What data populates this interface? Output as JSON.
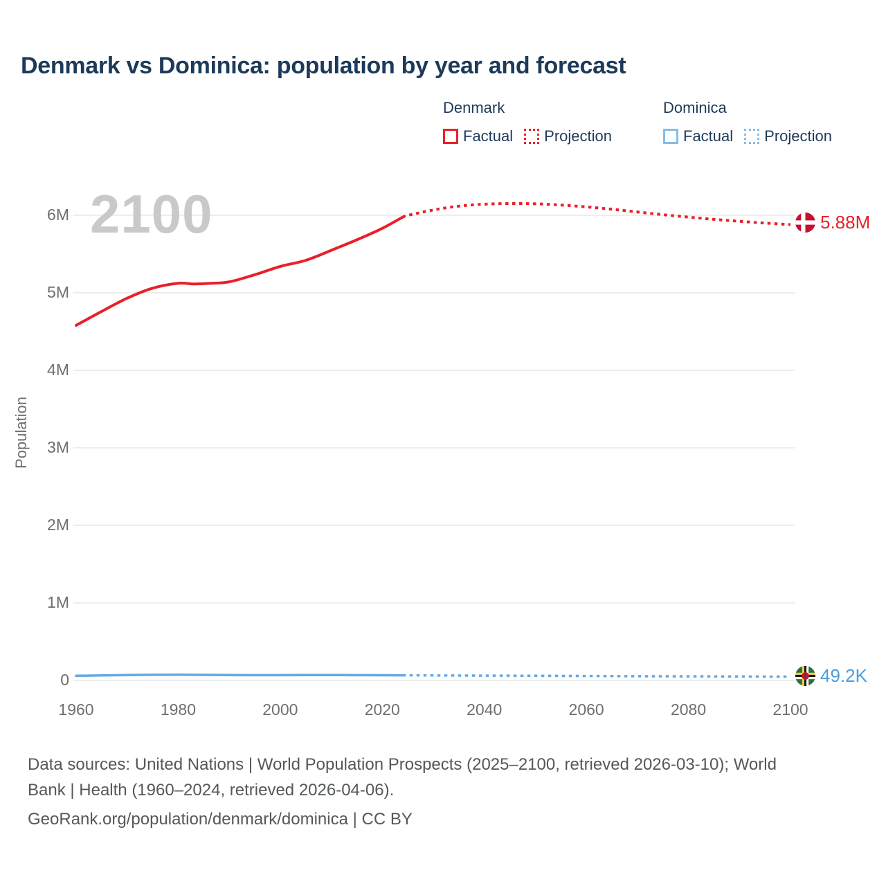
{
  "title": "Denmark vs Dominica: population by year and forecast",
  "watermark_year": "2100",
  "colors": {
    "title_text": "#1d3a5a",
    "tick_text": "#6e6e6e",
    "gridline": "#ededed",
    "watermark": "#c9c9c9",
    "denmark_red": "#e8202a",
    "dominica_blue": "#64a8e4",
    "dominica_label_blue": "#4a9ede",
    "footer_text": "#54585b"
  },
  "legend": {
    "groups": [
      {
        "name": "Denmark",
        "color": "#e8202a",
        "items": [
          {
            "label": "Factual",
            "style": "solid"
          },
          {
            "label": "Projection",
            "style": "dotted"
          }
        ]
      },
      {
        "name": "Dominica",
        "color": "#85bde9",
        "items": [
          {
            "label": "Factual",
            "style": "solid"
          },
          {
            "label": "Projection",
            "style": "dotted"
          }
        ]
      }
    ]
  },
  "axes": {
    "y_label": "Population",
    "y_ticks": [
      {
        "label": "0",
        "value": 0
      },
      {
        "label": "1M",
        "value": 1000000
      },
      {
        "label": "2M",
        "value": 2000000
      },
      {
        "label": "3M",
        "value": 3000000
      },
      {
        "label": "4M",
        "value": 4000000
      },
      {
        "label": "5M",
        "value": 5000000
      },
      {
        "label": "6M",
        "value": 6000000
      }
    ],
    "x_ticks": [
      "1960",
      "1980",
      "2000",
      "2020",
      "2040",
      "2060",
      "2080",
      "2100"
    ],
    "x_range": [
      1960,
      2100
    ],
    "y_range": [
      0,
      6000000
    ],
    "grid": "horizontal-only"
  },
  "chart_data": {
    "type": "line",
    "title": "Denmark vs Dominica: population by year and forecast",
    "xlabel": "",
    "ylabel": "Population",
    "x_range": [
      1960,
      2100
    ],
    "ylim": [
      0,
      6500000
    ],
    "legend_position": "top-right",
    "series": [
      {
        "name": "Denmark Factual",
        "color": "#e8202a",
        "style": "solid",
        "width": 4,
        "points": [
          [
            1960,
            4580000
          ],
          [
            1965,
            4760000
          ],
          [
            1970,
            4930000
          ],
          [
            1975,
            5060000
          ],
          [
            1980,
            5123000
          ],
          [
            1983,
            5114000
          ],
          [
            1986,
            5121000
          ],
          [
            1990,
            5141000
          ],
          [
            1995,
            5233000
          ],
          [
            2000,
            5340000
          ],
          [
            2005,
            5419000
          ],
          [
            2010,
            5548000
          ],
          [
            2015,
            5683000
          ],
          [
            2020,
            5831000
          ],
          [
            2024,
            5977000
          ]
        ]
      },
      {
        "name": "Denmark Projection",
        "color": "#e8202a",
        "style": "dotted",
        "width": 4,
        "points": [
          [
            2024,
            5977000
          ],
          [
            2025,
            5998000
          ],
          [
            2030,
            6068000
          ],
          [
            2035,
            6118000
          ],
          [
            2040,
            6143000
          ],
          [
            2045,
            6152000
          ],
          [
            2050,
            6148000
          ],
          [
            2055,
            6132000
          ],
          [
            2060,
            6108000
          ],
          [
            2065,
            6078000
          ],
          [
            2070,
            6043000
          ],
          [
            2075,
            6008000
          ],
          [
            2080,
            5976000
          ],
          [
            2085,
            5947000
          ],
          [
            2090,
            5922000
          ],
          [
            2095,
            5899000
          ],
          [
            2100,
            5880000
          ]
        ]
      },
      {
        "name": "Dominica Factual",
        "color": "#64a8e4",
        "style": "solid",
        "width": 3.5,
        "points": [
          [
            1960,
            59500
          ],
          [
            1965,
            64000
          ],
          [
            1970,
            69000
          ],
          [
            1975,
            72000
          ],
          [
            1980,
            73000
          ],
          [
            1985,
            71000
          ],
          [
            1990,
            69000
          ],
          [
            1995,
            68000
          ],
          [
            2000,
            68000
          ],
          [
            2005,
            68500
          ],
          [
            2010,
            69000
          ],
          [
            2015,
            68000
          ],
          [
            2020,
            67000
          ],
          [
            2024,
            66200
          ]
        ]
      },
      {
        "name": "Dominica Projection",
        "color": "#64a8e4",
        "style": "dotted",
        "width": 3.5,
        "points": [
          [
            2024,
            66200
          ],
          [
            2030,
            64500
          ],
          [
            2040,
            62000
          ],
          [
            2050,
            59500
          ],
          [
            2060,
            57000
          ],
          [
            2070,
            54500
          ],
          [
            2080,
            52500
          ],
          [
            2090,
            50800
          ],
          [
            2100,
            49200
          ]
        ]
      }
    ]
  },
  "end_labels": [
    {
      "series": "Denmark",
      "value": "5.88M",
      "flag": "denmark-flag"
    },
    {
      "series": "Dominica",
      "value": "49.2K",
      "flag": "dominica-flag"
    }
  ],
  "footer": {
    "line1": "Data sources: United Nations | World Population Prospects (2025–2100, retrieved 2026-03-10); World",
    "line2": "Bank | Health (1960–2024, retrieved 2026-04-06).",
    "line3": "GeoRank.org/population/denmark/dominica | CC BY"
  }
}
